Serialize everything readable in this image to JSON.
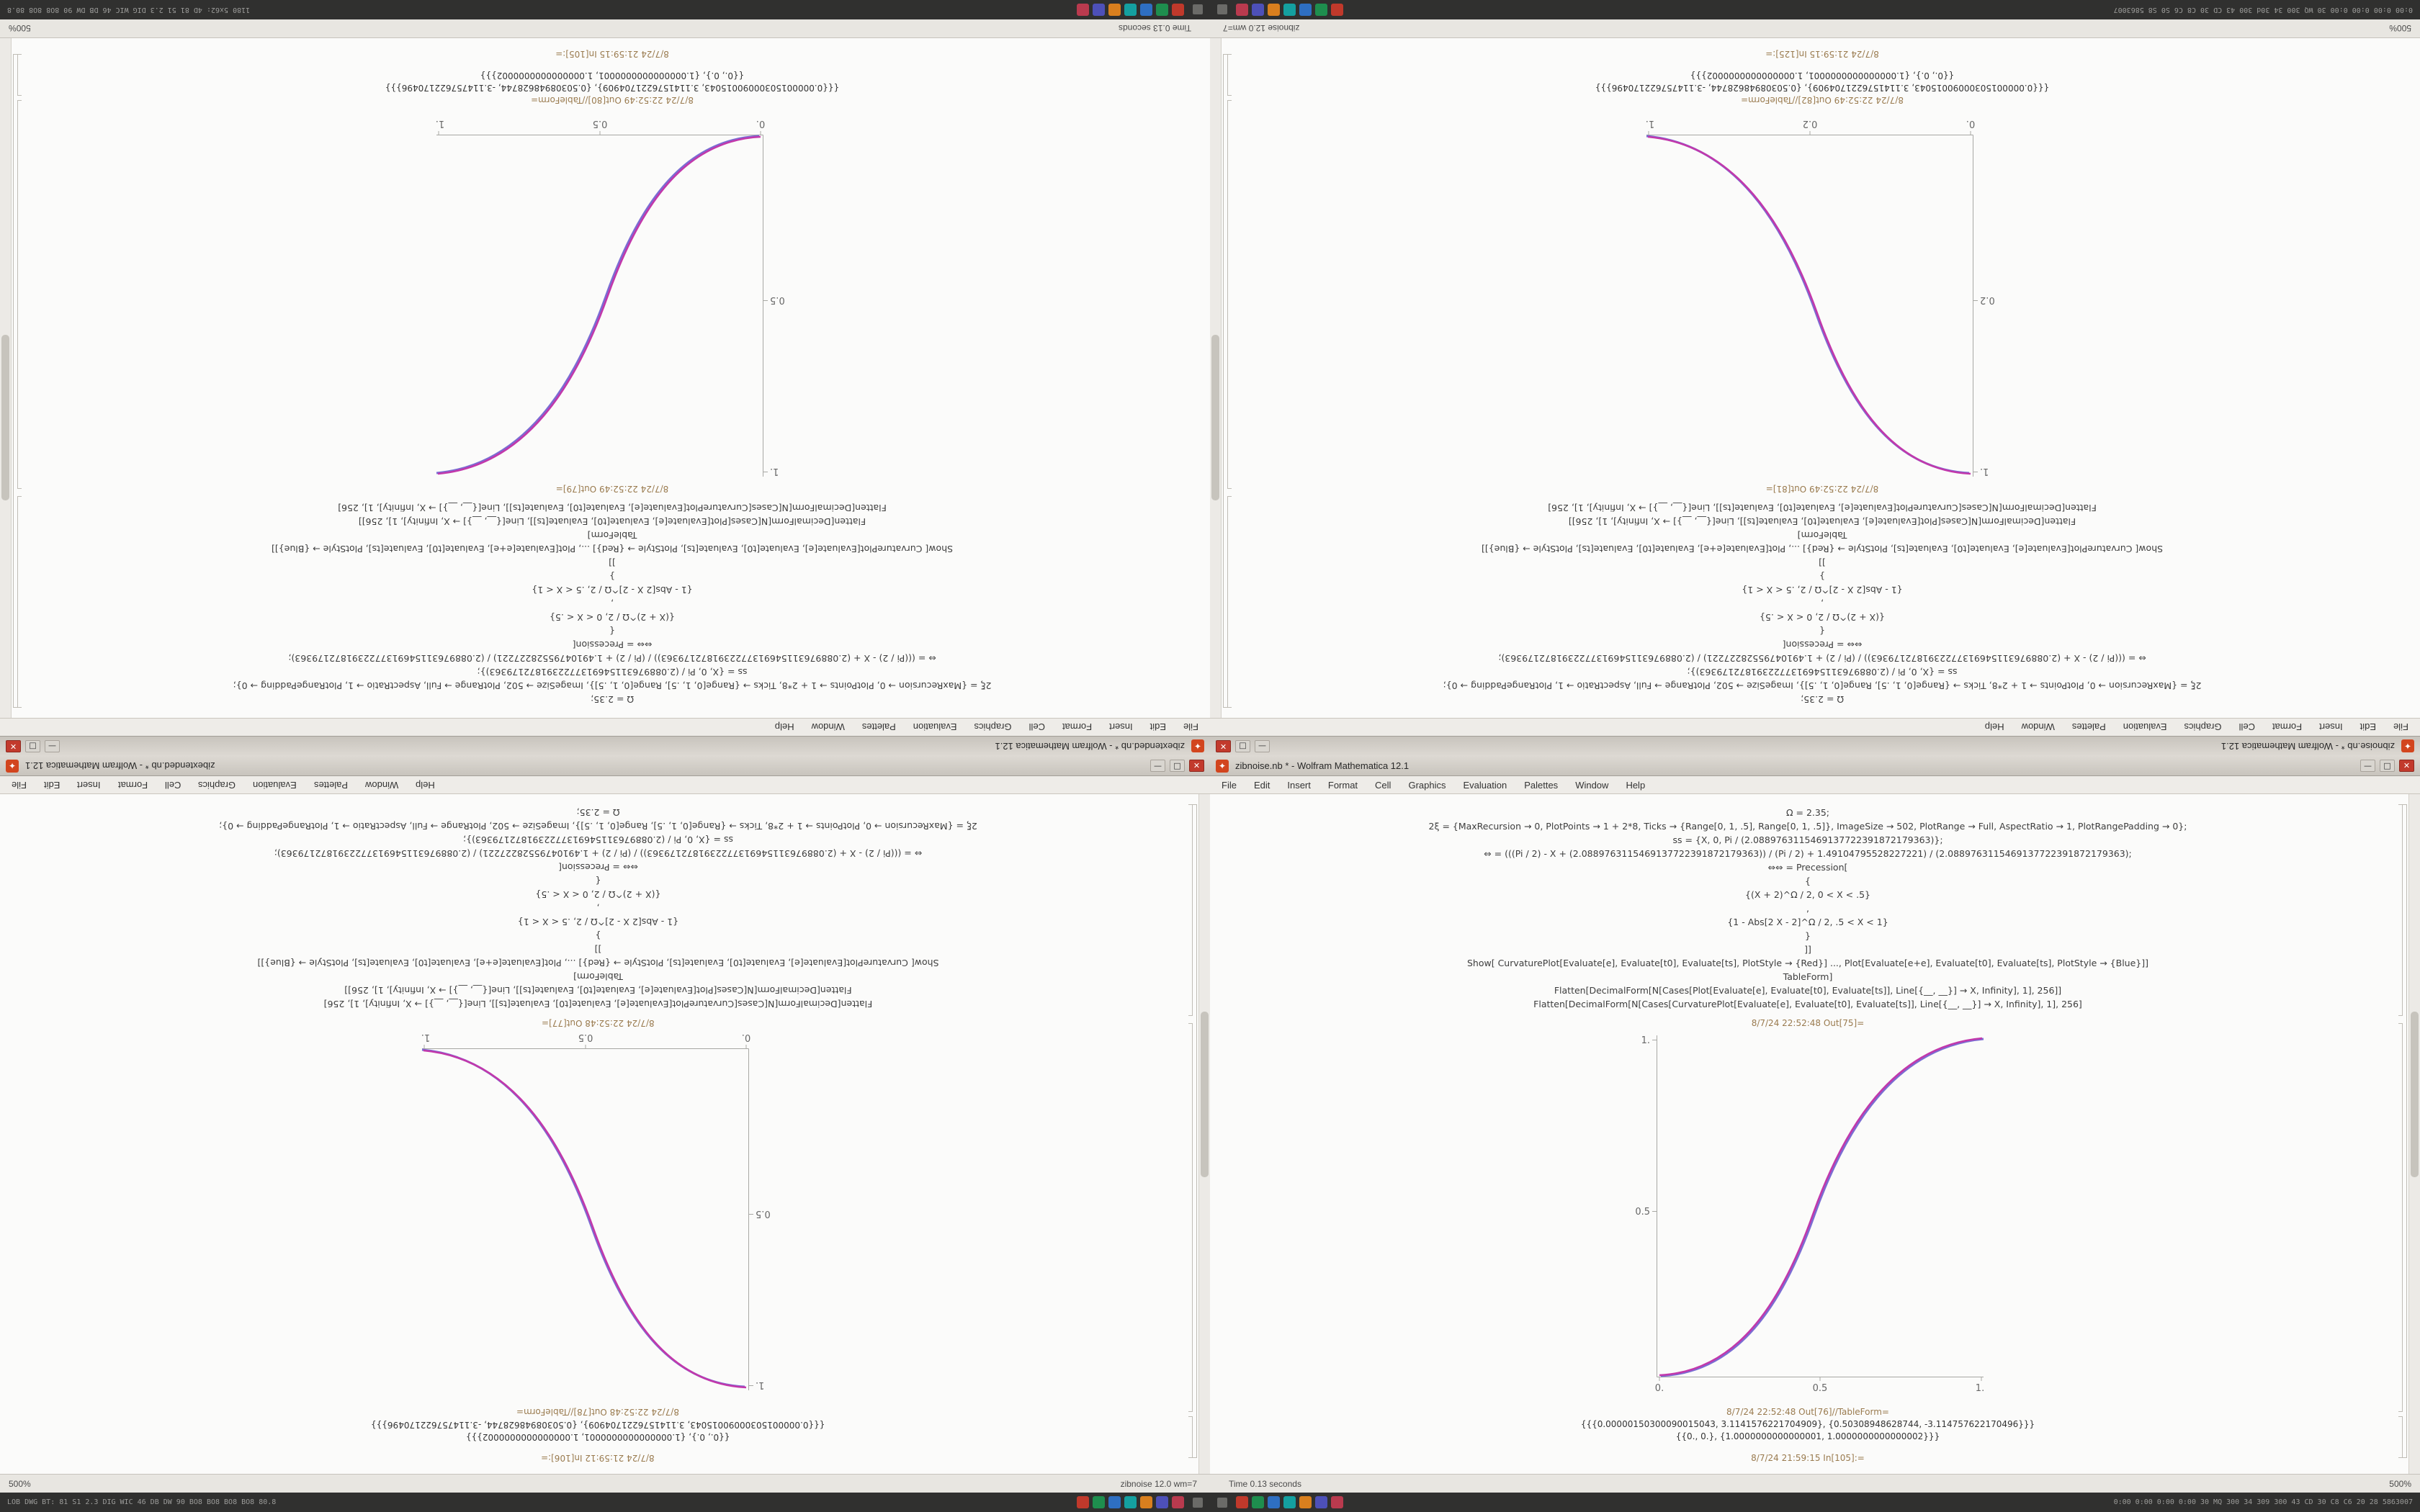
{
  "menus": [
    "File",
    "Edit",
    "Insert",
    "Format",
    "Cell",
    "Graphics",
    "Evaluation",
    "Palettes",
    "Window",
    "Help"
  ],
  "tray_icons": [
    {
      "name": "tray-icon-red",
      "color": "#c0392b"
    },
    {
      "name": "tray-icon-green",
      "color": "#1e8e4e"
    },
    {
      "name": "tray-icon-blue",
      "color": "#2e6fc2"
    },
    {
      "name": "tray-icon-teal",
      "color": "#14a0a0"
    },
    {
      "name": "tray-icon-orange",
      "color": "#d97f1e"
    },
    {
      "name": "tray-icon-indigo",
      "color": "#4d50b8"
    },
    {
      "name": "tray-icon-crimson",
      "color": "#b93a4e"
    }
  ],
  "code_lines": [
    "Ω = 2.35;",
    "2ξ = {MaxRecursion → 0, PlotPoints → 1 + 2*8, Ticks → {Range[0, 1, .5], Range[0, 1, .5]}, ImageSize → 502, PlotRange → Full, AspectRatio → 1, PlotRangePadding → 0};",
    "ss = {X, 0, Pi / (2.0889763115469137722391872179363)};",
    "⇔ = (((Pi / 2) - X + (2.0889763115469137722391872179363)) / (Pi / 2) + 1.49104795528227221) / (2.0889763115469137722391872179363);",
    "⇔⇔ = Precession[",
    "{",
    "{(X + 2)^Ω / 2, 0 < X < .5}",
    ",",
    "{1 - Abs[2 X - 2]^Ω / 2, .5 < X < 1}",
    "}",
    "]]",
    "Show[ CurvaturePlot[Evaluate[e], Evaluate[t0], Evaluate[ts], PlotStyle → {Red}] ..., Plot[Evaluate[e+e], Evaluate[t0], Evaluate[ts], PlotStyle → {Blue}]]",
    "TableForm]",
    "Flatten[DecimalForm[N[Cases[Plot[Evaluate[e], Evaluate[t0], Evaluate[ts]], Line[{__, __}] → X, Infinity], 1], 256]]",
    "Flatten[DecimalForm[N[Cases[CurvaturePlot[Evaluate[e], Evaluate[t0], Evaluate[ts]], Line[{__, __}] → X, Infinity], 1], 256]"
  ],
  "window_buttons": {
    "minimize": "—",
    "maximize": "□",
    "close": "✕"
  },
  "app_icon_glyph": "✦",
  "panel_order": [
    "top_left",
    "top_right",
    "bottom_left",
    "bottom_right"
  ],
  "quadrants": {
    "top_left": {
      "mode": "rotate-panel",
      "title": "zibextended.nb * - Wolfram Mathematica 12.1",
      "out_plot_label": "8/7/24 22:52:49 Out[79]=",
      "out_table_label": "8/7/24 22:52:49 Out[80]//TableForm=",
      "table_rows": [
        "{{{0.00000150300090015043, 3.1141576221704909}, {0.50308948628744, -3.114757622170496}}}",
        "{{0., 0.}, {1.0000000000000001, 1.0000000000000002}}}"
      ],
      "in_label": "8/7/24 21:59:15 In[105]:=",
      "status_text": "Time 0.13 seconds",
      "status_zoom": "500%",
      "status_align": "left",
      "tray_side": "left",
      "taskbar_text": "1180 5x62: 4D 81 51 2.3 DIG WIC 46 DB DW 90 8O8 8O8 80.8",
      "plot": {
        "curve": "ascending",
        "x_ticks": [
          "0.",
          "0.5",
          "1."
        ],
        "y_ticks": [
          "0.5",
          "1."
        ]
      }
    },
    "top_right": {
      "mode": "rotate-panel",
      "title": "zibnoise.nb * - Wolfram Mathematica 12.1",
      "out_plot_label": "8/7/24 22:52:49 Out[81]=",
      "out_table_label": "8/7/24 22:52:49 Out[82]//TableForm=",
      "table_rows": [
        "{{{0.00000150300090015043, 3.1141576221704909}, {0.50308948628744, -3.114757622170496}}}",
        "{{0., 0.}, {1.0000000000000001, 1.0000000000000002}}}"
      ],
      "in_label": "8/7/24 21:59:15 In[125]:=",
      "status_text": "zibnoise 12.0 wm=7",
      "status_zoom": "500%",
      "status_align": "right",
      "tray_side": "right",
      "taskbar_text": "0:00 0:00 0:00 0:00 30 WQ 300 34 30d 300 43 CD 30 C8 C6 S0 S8 5863007",
      "plot": {
        "curve": "descending",
        "x_ticks": [
          "0.",
          "0.2",
          "1."
        ],
        "y_ticks": [
          "0.2",
          "1."
        ]
      }
    },
    "bottom_left": {
      "mode": "rotate-elements",
      "title": "zibextended.nb * - Wolfram Mathematica 12.1",
      "out_plot_label": "8/7/24 22:52:48 Out[77]=",
      "out_table_label": "8/7/24 22:52:48 Out[78]//TableForm=",
      "table_rows": [
        "{{{0.00000150300090015043, 3.1141576221704909}, {0.50308948628744, -3.114757622170496}}}",
        "{{0., 0.}, {1.0000000000000001, 1.0000000000000002}}}"
      ],
      "in_label": "8/7/24 21:59:12 In[106]:=",
      "status_text": "zibnoise 12.0 wm=7",
      "status_zoom": "500%",
      "status_align": "right",
      "tray_side": "right",
      "taskbar_text": "LOB DWG BT: 81 S1 2.3 DIG WIC 46 DB DW 90 BO8 BO8 BO8 BO8 80.8",
      "plot": {
        "curve": "descending",
        "x_ticks": [
          "0.",
          "0.5",
          "1."
        ],
        "y_ticks": [
          "0.5",
          "1."
        ]
      }
    },
    "bottom_right": {
      "mode": "normal",
      "title": "zibnoise.nb * - Wolfram Mathematica 12.1",
      "out_plot_label": "8/7/24 22:52:48 Out[75]=",
      "out_table_label": "8/7/24 22:52:48 Out[76]//TableForm=",
      "table_rows": [
        "{{{0.00000150300090015043, 3.1141576221704909}, {0.50308948628744, -3.114757622170496}}}",
        "{{0., 0.}, {1.0000000000000001, 1.0000000000000002}}}"
      ],
      "in_label": "8/7/24 21:59:15 In[105]:=",
      "status_text": "Time 0.13 seconds",
      "status_zoom": "500%",
      "status_align": "left",
      "tray_side": "left",
      "taskbar_text": "0:00 0:00 0:00 0:00 30 MQ 300 34 309 300 43 CD 30 C8 C6 20 28 5863007",
      "plot": {
        "curve": "ascending",
        "x_ticks": [
          "0.",
          "0.5",
          "1."
        ],
        "y_ticks": [
          "0.5",
          "1."
        ]
      }
    }
  }
}
